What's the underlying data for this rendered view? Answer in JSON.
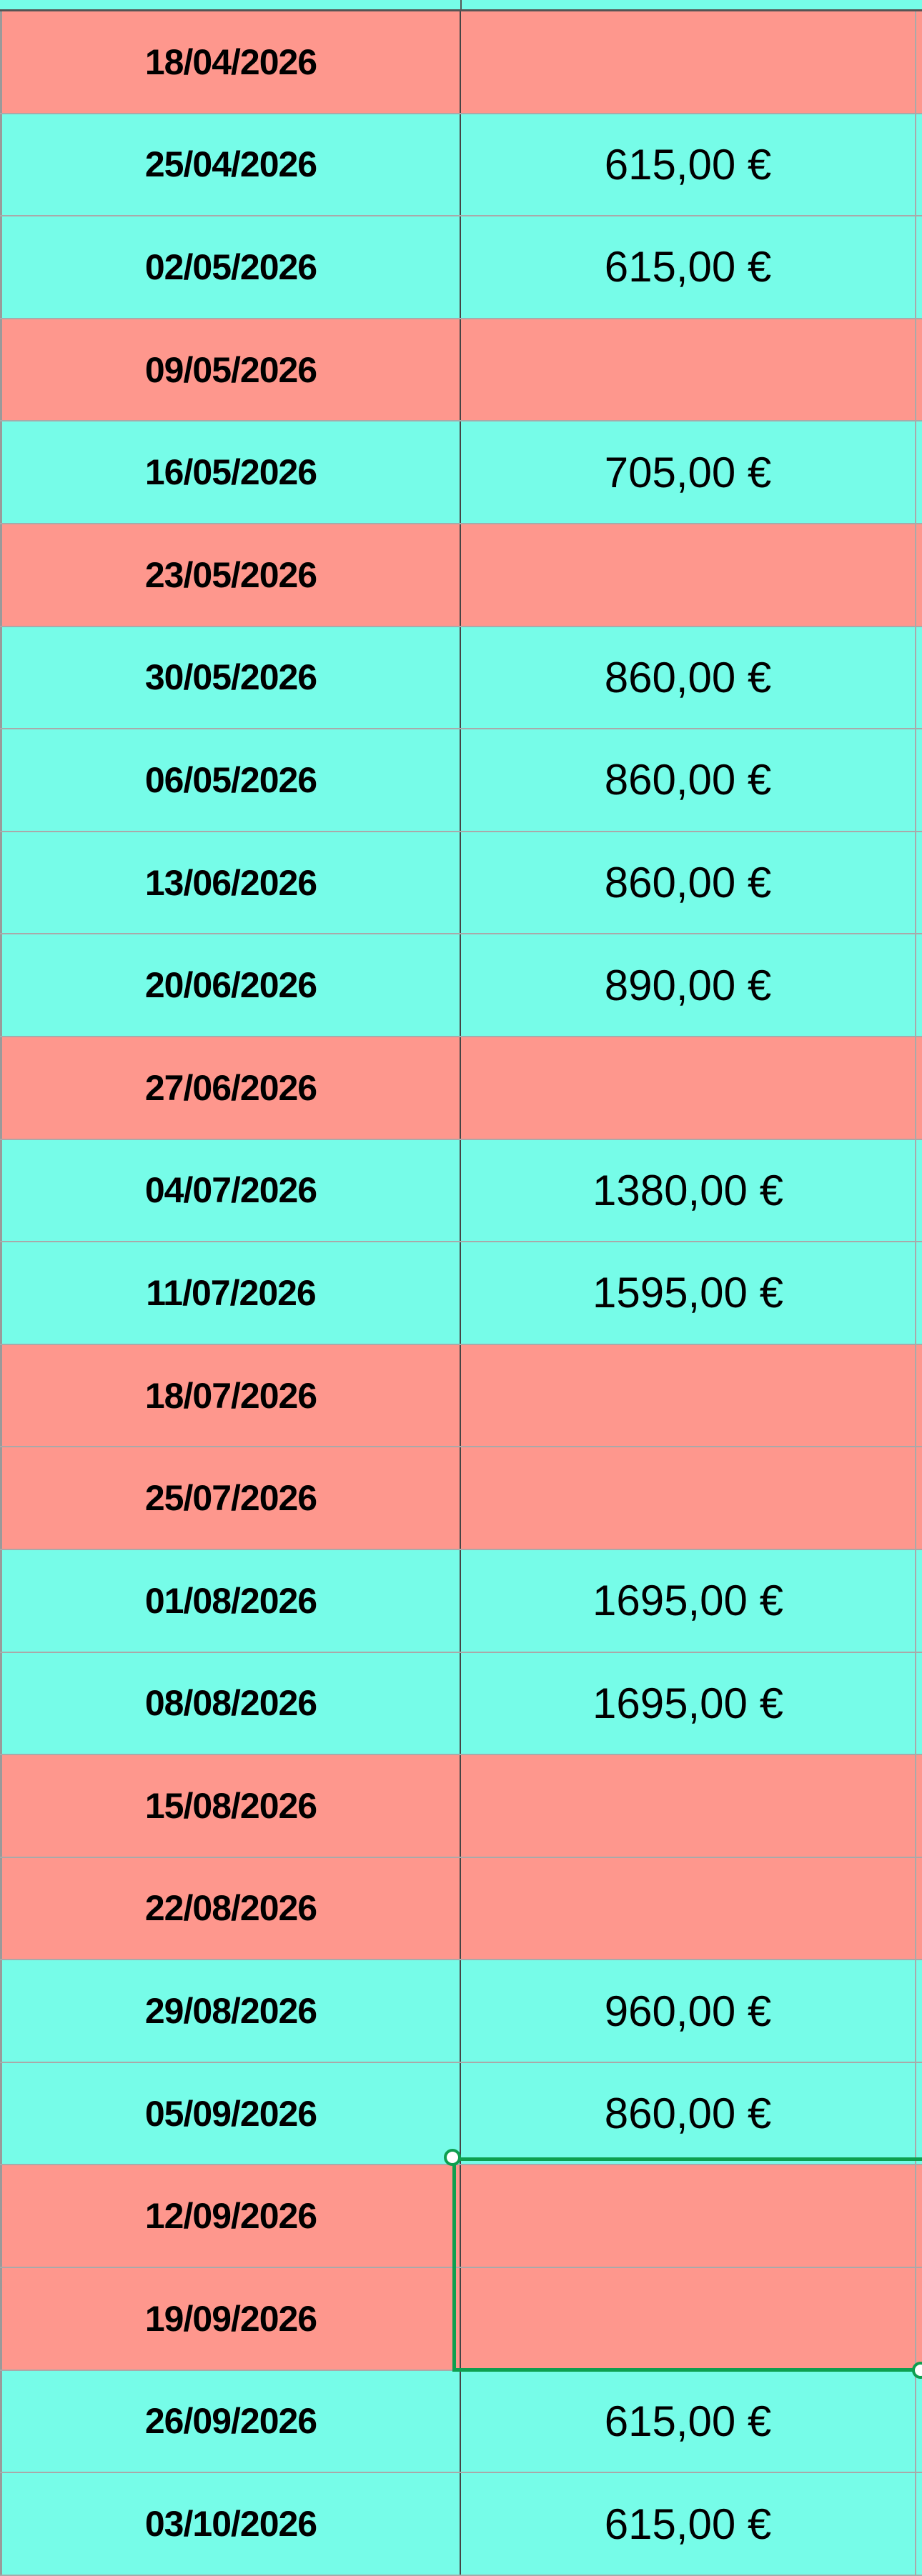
{
  "colors": {
    "paid": "#76fce8",
    "unpaid": "#fe978d",
    "selection": "#0e9f4f"
  },
  "rows": [
    {
      "date": "18/04/2026",
      "amount": "",
      "status": "red"
    },
    {
      "date": "25/04/2026",
      "amount": "615,00 €",
      "status": "green"
    },
    {
      "date": "02/05/2026",
      "amount": "615,00 €",
      "status": "green"
    },
    {
      "date": "09/05/2026",
      "amount": "",
      "status": "red"
    },
    {
      "date": "16/05/2026",
      "amount": "705,00 €",
      "status": "green"
    },
    {
      "date": "23/05/2026",
      "amount": "",
      "status": "red"
    },
    {
      "date": "30/05/2026",
      "amount": "860,00 €",
      "status": "green"
    },
    {
      "date": "06/05/2026",
      "amount": "860,00 €",
      "status": "green"
    },
    {
      "date": "13/06/2026",
      "amount": "860,00 €",
      "status": "green"
    },
    {
      "date": "20/06/2026",
      "amount": "890,00 €",
      "status": "green"
    },
    {
      "date": "27/06/2026",
      "amount": "",
      "status": "red"
    },
    {
      "date": "04/07/2026",
      "amount": "1380,00 €",
      "status": "green"
    },
    {
      "date": "11/07/2026",
      "amount": "1595,00 €",
      "status": "green"
    },
    {
      "date": "18/07/2026",
      "amount": "",
      "status": "red"
    },
    {
      "date": "25/07/2026",
      "amount": "",
      "status": "red"
    },
    {
      "date": "01/08/2026",
      "amount": "1695,00 €",
      "status": "green"
    },
    {
      "date": "08/08/2026",
      "amount": "1695,00 €",
      "status": "green"
    },
    {
      "date": "15/08/2026",
      "amount": "",
      "status": "red"
    },
    {
      "date": "22/08/2026",
      "amount": "",
      "status": "red"
    },
    {
      "date": "29/08/2026",
      "amount": "960,00 €",
      "status": "green"
    },
    {
      "date": "05/09/2026",
      "amount": "860,00 €",
      "status": "green"
    },
    {
      "date": "12/09/2026",
      "amount": "",
      "status": "red"
    },
    {
      "date": "19/09/2026",
      "amount": "",
      "status": "red"
    },
    {
      "date": "26/09/2026",
      "amount": "615,00 €",
      "status": "green"
    },
    {
      "date": "03/10/2026",
      "amount": "615,00 €",
      "status": "green"
    }
  ]
}
